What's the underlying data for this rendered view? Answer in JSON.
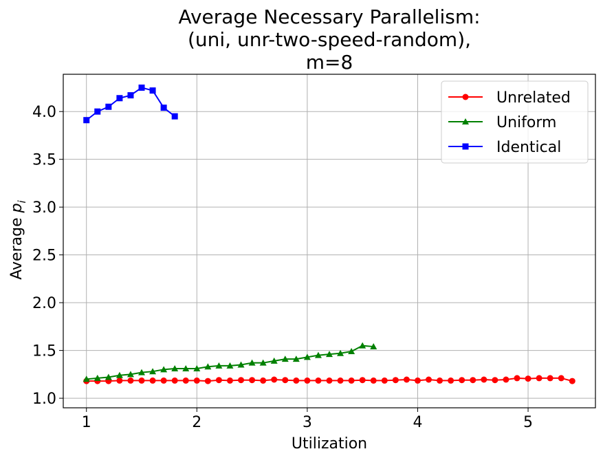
{
  "chart_data": {
    "type": "line",
    "title": [
      "Average Necessary Parallelism:",
      "(uni, unr-two-speed-random),",
      "m=8"
    ],
    "xlabel": "Utilization",
    "ylabel": "Average",
    "ylabel_symbol": "p",
    "ylabel_subscript": "i",
    "xlim": [
      0.79,
      5.61
    ],
    "ylim": [
      0.9,
      4.39
    ],
    "xticks": [
      1,
      2,
      3,
      4,
      5
    ],
    "xtick_labels": [
      "1",
      "2",
      "3",
      "4",
      "5"
    ],
    "yticks": [
      1.0,
      1.5,
      2.0,
      2.5,
      3.0,
      3.5,
      4.0
    ],
    "ytick_labels": [
      "1.0",
      "1.5",
      "2.0",
      "2.5",
      "3.0",
      "3.5",
      "4.0"
    ],
    "grid": true,
    "legend_position": "top-right",
    "series": [
      {
        "name": "Unrelated",
        "color": "#ff0000",
        "marker": "circle",
        "x": [
          1.0,
          1.1,
          1.2,
          1.3,
          1.4,
          1.5,
          1.6,
          1.7,
          1.8,
          1.9,
          2.0,
          2.1,
          2.2,
          2.3,
          2.4,
          2.5,
          2.6,
          2.7,
          2.8,
          2.9,
          3.0,
          3.1,
          3.2,
          3.3,
          3.4,
          3.5,
          3.6,
          3.7,
          3.8,
          3.9,
          4.0,
          4.1,
          4.2,
          4.3,
          4.4,
          4.5,
          4.6,
          4.7,
          4.8,
          4.9,
          5.0,
          5.1,
          5.2,
          5.3,
          5.4
        ],
        "y": [
          1.18,
          1.18,
          1.18,
          1.185,
          1.185,
          1.185,
          1.185,
          1.185,
          1.185,
          1.185,
          1.185,
          1.18,
          1.19,
          1.185,
          1.19,
          1.19,
          1.185,
          1.195,
          1.19,
          1.185,
          1.185,
          1.185,
          1.185,
          1.185,
          1.185,
          1.19,
          1.185,
          1.185,
          1.19,
          1.195,
          1.185,
          1.195,
          1.185,
          1.185,
          1.19,
          1.19,
          1.195,
          1.19,
          1.195,
          1.21,
          1.205,
          1.21,
          1.21,
          1.21,
          1.18
        ]
      },
      {
        "name": "Uniform",
        "color": "#008000",
        "marker": "triangle",
        "x": [
          1.0,
          1.1,
          1.2,
          1.3,
          1.4,
          1.5,
          1.6,
          1.7,
          1.8,
          1.9,
          2.0,
          2.1,
          2.2,
          2.3,
          2.4,
          2.5,
          2.6,
          2.7,
          2.8,
          2.9,
          3.0,
          3.1,
          3.2,
          3.3,
          3.4,
          3.5,
          3.6
        ],
        "y": [
          1.2,
          1.21,
          1.22,
          1.24,
          1.25,
          1.27,
          1.28,
          1.3,
          1.31,
          1.31,
          1.31,
          1.33,
          1.34,
          1.34,
          1.35,
          1.37,
          1.37,
          1.39,
          1.41,
          1.41,
          1.43,
          1.45,
          1.46,
          1.47,
          1.49,
          1.55,
          1.54
        ]
      },
      {
        "name": "Identical",
        "color": "#0000ff",
        "marker": "square",
        "x": [
          1.0,
          1.1,
          1.2,
          1.3,
          1.4,
          1.5,
          1.6,
          1.7,
          1.8
        ],
        "y": [
          3.91,
          4.0,
          4.05,
          4.14,
          4.17,
          4.25,
          4.22,
          4.04,
          3.95
        ]
      }
    ]
  }
}
